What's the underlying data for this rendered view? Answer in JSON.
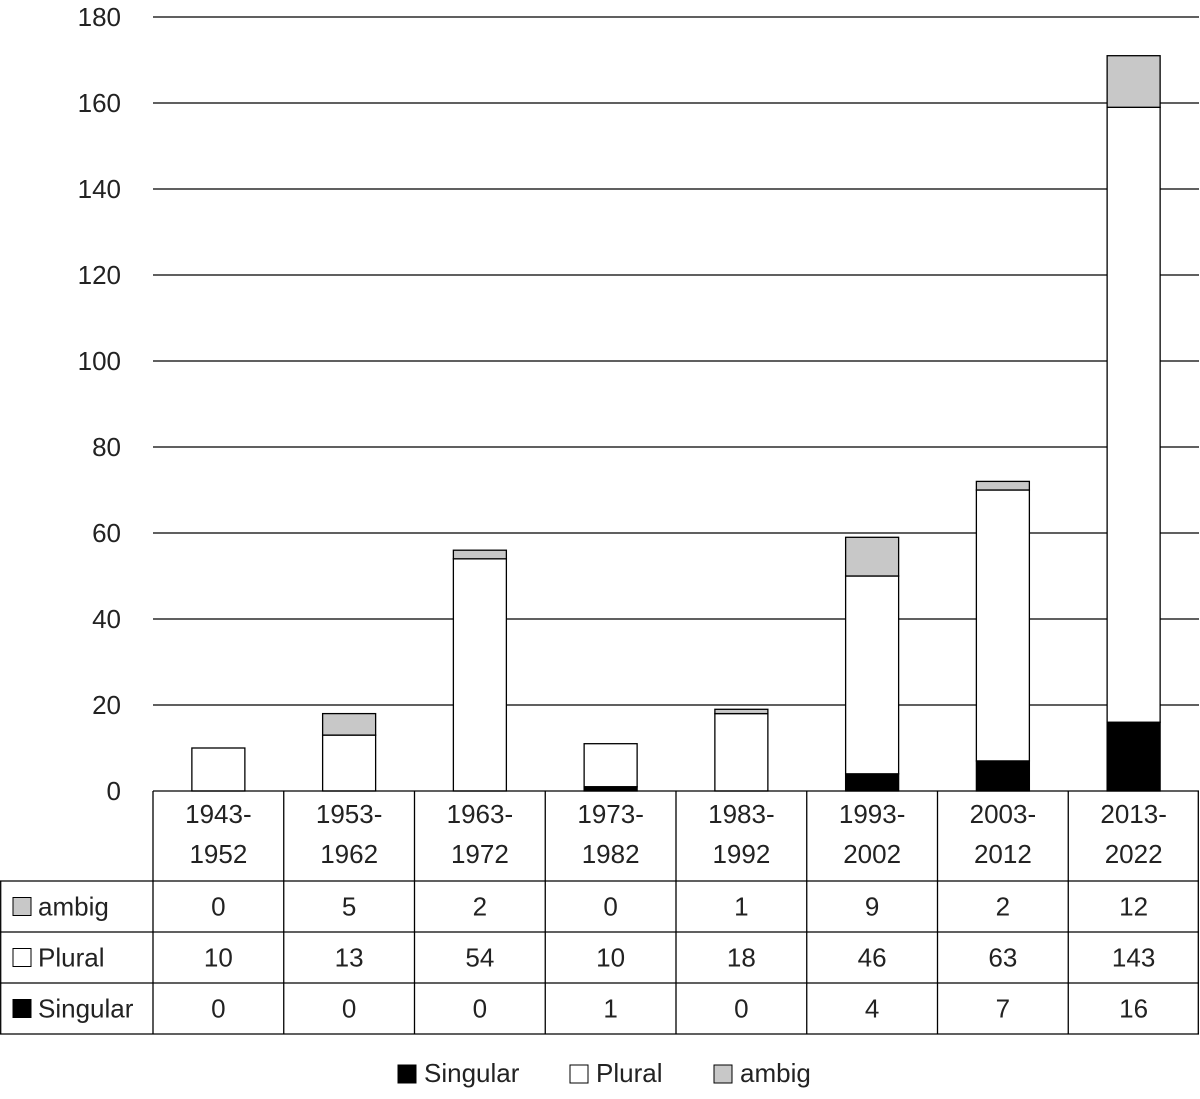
{
  "chart_data": {
    "type": "bar",
    "stacked": true,
    "title": "",
    "xlabel": "",
    "ylabel": "",
    "ylim": [
      0,
      180
    ],
    "yticks": [
      0,
      20,
      40,
      60,
      80,
      100,
      120,
      140,
      160,
      180
    ],
    "grid": true,
    "legend_position": "bottom",
    "data_table": true,
    "categories": [
      [
        "1943-",
        "1952"
      ],
      [
        "1953-",
        "1962"
      ],
      [
        "1963-",
        "1972"
      ],
      [
        "1973-",
        "1982"
      ],
      [
        "1983-",
        "1992"
      ],
      [
        "1993-",
        "2002"
      ],
      [
        "2003-",
        "2012"
      ],
      [
        "2013-",
        "2022"
      ]
    ],
    "series": [
      {
        "name": "Singular",
        "color": "#000000",
        "values": [
          0,
          0,
          0,
          1,
          0,
          4,
          7,
          16
        ]
      },
      {
        "name": "Plural",
        "color": "#ffffff",
        "values": [
          10,
          13,
          54,
          10,
          18,
          46,
          63,
          143
        ]
      },
      {
        "name": "ambig",
        "color": "#c8c8c8",
        "values": [
          0,
          5,
          2,
          0,
          1,
          9,
          2,
          12
        ]
      }
    ],
    "table_row_order": [
      "ambig",
      "Plural",
      "Singular"
    ],
    "legend_order": [
      "Singular",
      "Plural",
      "ambig"
    ]
  }
}
